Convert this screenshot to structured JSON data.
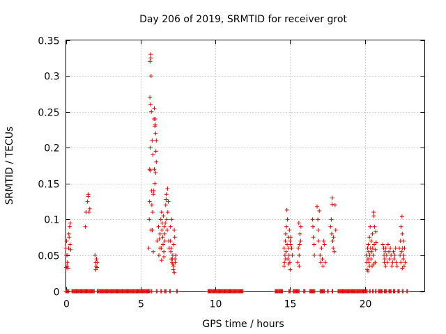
{
  "chart_data": {
    "type": "scatter",
    "title": "Day 206 of 2019, SRMTID for receiver grot",
    "xlabel": "GPS time / hours",
    "ylabel": "SRMTID / TECUs",
    "xlim": [
      0,
      24
    ],
    "ylim": [
      0,
      0.35
    ],
    "grid": true,
    "marker": "+",
    "series_color": "#e00000",
    "x_ticks": [
      0,
      5,
      10,
      15,
      20
    ],
    "x_tick_labels": [
      "0",
      "5",
      "10",
      "15",
      "20"
    ],
    "y_ticks": [
      0,
      0.05,
      0.1,
      0.15,
      0.2,
      0.25,
      0.3,
      0.35
    ],
    "y_tick_labels": [
      "0",
      "0.05",
      "0.1",
      "0.15",
      "0.2",
      "0.25",
      "0.3",
      "0.35"
    ],
    "series": [
      {
        "name": "SRMTID",
        "points": [
          [
            0.0,
            0.06
          ],
          [
            0.02,
            0.05
          ],
          [
            0.03,
            0.033
          ],
          [
            0.05,
            0.07
          ],
          [
            0.08,
            0.035
          ],
          [
            0.1,
            0.04
          ],
          [
            0.12,
            0.05
          ],
          [
            0.15,
            0.032
          ],
          [
            0.18,
            0.06
          ],
          [
            0.2,
            0.08
          ],
          [
            0.22,
            0.075
          ],
          [
            0.25,
            0.09
          ],
          [
            0.28,
            0.065
          ],
          [
            0.3,
            0.095
          ],
          [
            0.32,
            0.058
          ],
          [
            1.3,
            0.09
          ],
          [
            1.35,
            0.11
          ],
          [
            1.45,
            0.125
          ],
          [
            1.5,
            0.135
          ],
          [
            1.55,
            0.11
          ],
          [
            1.6,
            0.115
          ],
          [
            1.5,
            0.132
          ],
          [
            1.95,
            0.05
          ],
          [
            2.0,
            0.04
          ],
          [
            2.02,
            0.035
          ],
          [
            2.05,
            0.045
          ],
          [
            2.08,
            0.033
          ],
          [
            2.1,
            0.04
          ],
          [
            2.0,
            0.03
          ],
          [
            5.55,
            0.06
          ],
          [
            5.58,
            0.1
          ],
          [
            5.6,
            0.17
          ],
          [
            5.62,
            0.27
          ],
          [
            5.63,
            0.32
          ],
          [
            5.65,
            0.2
          ],
          [
            5.66,
            0.26
          ],
          [
            5.67,
            0.33
          ],
          [
            5.68,
            0.325
          ],
          [
            5.7,
            0.3
          ],
          [
            5.72,
            0.25
          ],
          [
            5.74,
            0.14
          ],
          [
            5.75,
            0.12
          ],
          [
            5.77,
            0.21
          ],
          [
            5.78,
            0.085
          ],
          [
            5.8,
            0.11
          ],
          [
            5.82,
            0.19
          ],
          [
            5.85,
            0.135
          ],
          [
            5.6,
            0.125
          ],
          [
            5.65,
            0.168
          ],
          [
            5.7,
            0.085
          ],
          [
            5.9,
            0.24
          ],
          [
            5.92,
            0.255
          ],
          [
            5.95,
            0.23
          ],
          [
            5.98,
            0.232
          ],
          [
            6.0,
            0.22
          ],
          [
            6.02,
            0.195
          ],
          [
            6.05,
            0.21
          ],
          [
            6.0,
            0.165
          ],
          [
            5.95,
            0.15
          ],
          [
            5.88,
            0.14
          ],
          [
            5.92,
            0.17
          ],
          [
            6.05,
            0.18
          ],
          [
            5.97,
            0.24
          ],
          [
            5.85,
            0.055
          ],
          [
            6.1,
            0.07
          ],
          [
            6.2,
            0.09
          ],
          [
            6.22,
            0.05
          ],
          [
            6.3,
            0.08
          ],
          [
            6.35,
            0.1
          ],
          [
            6.38,
            0.06
          ],
          [
            6.4,
            0.11
          ],
          [
            6.42,
            0.085
          ],
          [
            6.45,
            0.095
          ],
          [
            6.48,
            0.075
          ],
          [
            6.5,
            0.065
          ],
          [
            6.52,
            0.105
          ],
          [
            6.55,
            0.048
          ],
          [
            6.58,
            0.09
          ],
          [
            6.6,
            0.08
          ],
          [
            6.62,
            0.07
          ],
          [
            6.65,
            0.095
          ],
          [
            6.68,
            0.12
          ],
          [
            6.7,
            0.128
          ],
          [
            6.72,
            0.135
          ],
          [
            6.75,
            0.1
          ],
          [
            6.78,
            0.085
          ],
          [
            6.8,
            0.143
          ],
          [
            6.82,
            0.11
          ],
          [
            6.85,
            0.125
          ],
          [
            6.88,
            0.07
          ],
          [
            6.9,
            0.06
          ],
          [
            6.4,
            0.043
          ],
          [
            6.55,
            0.055
          ],
          [
            6.3,
            0.06
          ],
          [
            6.25,
            0.073
          ],
          [
            7.0,
            0.09
          ],
          [
            7.02,
            0.055
          ],
          [
            7.05,
            0.06
          ],
          [
            7.08,
            0.1
          ],
          [
            7.1,
            0.04
          ],
          [
            7.12,
            0.045
          ],
          [
            7.15,
            0.05
          ],
          [
            7.18,
            0.03
          ],
          [
            7.2,
            0.035
          ],
          [
            7.22,
            0.065
          ],
          [
            7.25,
            0.085
          ],
          [
            7.28,
            0.075
          ],
          [
            7.3,
            0.045
          ],
          [
            7.32,
            0.04
          ],
          [
            7.35,
            0.05
          ],
          [
            7.05,
            0.045
          ],
          [
            7.15,
            0.038
          ],
          [
            7.25,
            0.026
          ],
          [
            7.0,
            0.07
          ],
          [
            14.6,
            0.06
          ],
          [
            14.62,
            0.04
          ],
          [
            14.65,
            0.05
          ],
          [
            14.68,
            0.07
          ],
          [
            14.7,
            0.08
          ],
          [
            14.72,
            0.055
          ],
          [
            14.75,
            0.09
          ],
          [
            14.78,
            0.113
          ],
          [
            14.8,
            0.065
          ],
          [
            14.82,
            0.1
          ],
          [
            14.85,
            0.045
          ],
          [
            14.88,
            0.075
          ],
          [
            14.9,
            0.06
          ],
          [
            14.92,
            0.05
          ],
          [
            14.95,
            0.085
          ],
          [
            14.98,
            0.04
          ],
          [
            15.0,
            0.07
          ],
          [
            15.02,
            0.065
          ],
          [
            15.05,
            0.075
          ],
          [
            15.1,
            0.06
          ],
          [
            15.15,
            0.05
          ],
          [
            14.6,
            0.035
          ],
          [
            14.7,
            0.045
          ],
          [
            14.9,
            0.038
          ],
          [
            15.0,
            0.03
          ],
          [
            15.5,
            0.04
          ],
          [
            15.55,
            0.06
          ],
          [
            15.58,
            0.095
          ],
          [
            15.6,
            0.05
          ],
          [
            15.62,
            0.065
          ],
          [
            15.65,
            0.08
          ],
          [
            15.7,
            0.07
          ],
          [
            15.72,
            0.09
          ],
          [
            15.6,
            0.035
          ],
          [
            16.5,
            0.1
          ],
          [
            16.52,
            0.09
          ],
          [
            16.55,
            0.075
          ],
          [
            16.6,
            0.065
          ],
          [
            16.62,
            0.05
          ],
          [
            16.8,
            0.118
          ],
          [
            16.85,
            0.1
          ],
          [
            16.88,
            0.085
          ],
          [
            16.9,
            0.07
          ],
          [
            16.95,
            0.112
          ],
          [
            17.0,
            0.05
          ],
          [
            17.05,
            0.04
          ],
          [
            17.1,
            0.06
          ],
          [
            17.15,
            0.045
          ],
          [
            17.2,
            0.035
          ],
          [
            17.25,
            0.07
          ],
          [
            17.3,
            0.065
          ],
          [
            17.35,
            0.04
          ],
          [
            17.7,
            0.09
          ],
          [
            17.75,
            0.1
          ],
          [
            17.78,
            0.08
          ],
          [
            17.8,
            0.121
          ],
          [
            17.82,
            0.13
          ],
          [
            17.85,
            0.07
          ],
          [
            17.88,
            0.06
          ],
          [
            17.9,
            0.075
          ],
          [
            17.95,
            0.055
          ],
          [
            18.0,
            0.12
          ],
          [
            18.05,
            0.085
          ],
          [
            20.1,
            0.05
          ],
          [
            20.12,
            0.04
          ],
          [
            20.15,
            0.03
          ],
          [
            20.18,
            0.06
          ],
          [
            20.2,
            0.045
          ],
          [
            20.22,
            0.065
          ],
          [
            20.25,
            0.055
          ],
          [
            20.28,
            0.04
          ],
          [
            20.3,
            0.075
          ],
          [
            20.32,
            0.05
          ],
          [
            20.35,
            0.09
          ],
          [
            20.38,
            0.06
          ],
          [
            20.4,
            0.045
          ],
          [
            20.42,
            0.07
          ],
          [
            20.45,
            0.055
          ],
          [
            20.48,
            0.035
          ],
          [
            20.5,
            0.08
          ],
          [
            20.52,
            0.06
          ],
          [
            20.55,
            0.05
          ],
          [
            20.58,
            0.11
          ],
          [
            20.6,
            0.105
          ],
          [
            20.62,
            0.065
          ],
          [
            20.65,
            0.09
          ],
          [
            20.68,
            0.04
          ],
          [
            20.7,
            0.058
          ],
          [
            20.72,
            0.083
          ],
          [
            20.75,
            0.068
          ],
          [
            20.2,
            0.028
          ],
          [
            20.3,
            0.035
          ],
          [
            20.6,
            0.038
          ],
          [
            21.2,
            0.065
          ],
          [
            21.25,
            0.06
          ],
          [
            21.28,
            0.05
          ],
          [
            21.3,
            0.04
          ],
          [
            21.32,
            0.045
          ],
          [
            21.35,
            0.055
          ],
          [
            21.38,
            0.035
          ],
          [
            21.4,
            0.06
          ],
          [
            21.45,
            0.05
          ],
          [
            21.5,
            0.04
          ],
          [
            21.55,
            0.065
          ],
          [
            21.6,
            0.055
          ],
          [
            21.65,
            0.045
          ],
          [
            21.7,
            0.06
          ],
          [
            21.75,
            0.05
          ],
          [
            21.8,
            0.035
          ],
          [
            21.85,
            0.04
          ],
          [
            21.9,
            0.055
          ],
          [
            21.95,
            0.045
          ],
          [
            22.0,
            0.05
          ],
          [
            22.05,
            0.06
          ],
          [
            22.1,
            0.04
          ],
          [
            22.15,
            0.035
          ],
          [
            22.3,
            0.06
          ],
          [
            22.35,
            0.05
          ],
          [
            22.38,
            0.07
          ],
          [
            22.4,
            0.04
          ],
          [
            22.42,
            0.09
          ],
          [
            22.45,
            0.055
          ],
          [
            22.48,
            0.104
          ],
          [
            22.5,
            0.08
          ],
          [
            22.52,
            0.06
          ],
          [
            22.55,
            0.045
          ],
          [
            22.58,
            0.07
          ],
          [
            22.6,
            0.05
          ],
          [
            22.62,
            0.035
          ],
          [
            22.65,
            0.06
          ],
          [
            22.7,
            0.04
          ],
          [
            22.5,
            0.032
          ]
        ]
      }
    ],
    "zero_runs": [
      [
        0.0,
        0.2
      ],
      [
        0.4,
        1.9
      ],
      [
        2.1,
        5.6
      ],
      [
        5.7,
        5.75
      ],
      [
        6.05,
        6.1
      ],
      [
        6.35,
        6.4
      ],
      [
        6.6,
        6.7
      ],
      [
        6.95,
        7.0
      ],
      [
        7.4,
        7.45
      ],
      [
        9.5,
        11.85
      ],
      [
        14.0,
        14.5
      ],
      [
        14.9,
        15.0
      ],
      [
        15.2,
        15.6
      ],
      [
        15.9,
        16.0
      ],
      [
        16.3,
        16.65
      ],
      [
        17.0,
        17.3
      ],
      [
        17.5,
        17.55
      ],
      [
        17.8,
        17.85
      ],
      [
        18.2,
        19.3
      ],
      [
        19.35,
        20.15
      ],
      [
        20.3,
        20.35
      ],
      [
        20.5,
        20.55
      ],
      [
        20.7,
        20.75
      ],
      [
        20.9,
        21.15
      ],
      [
        21.3,
        21.45
      ],
      [
        21.6,
        21.75
      ],
      [
        21.9,
        22.0
      ],
      [
        22.2,
        22.3
      ],
      [
        22.5,
        22.55
      ],
      [
        22.8,
        22.85
      ]
    ]
  }
}
